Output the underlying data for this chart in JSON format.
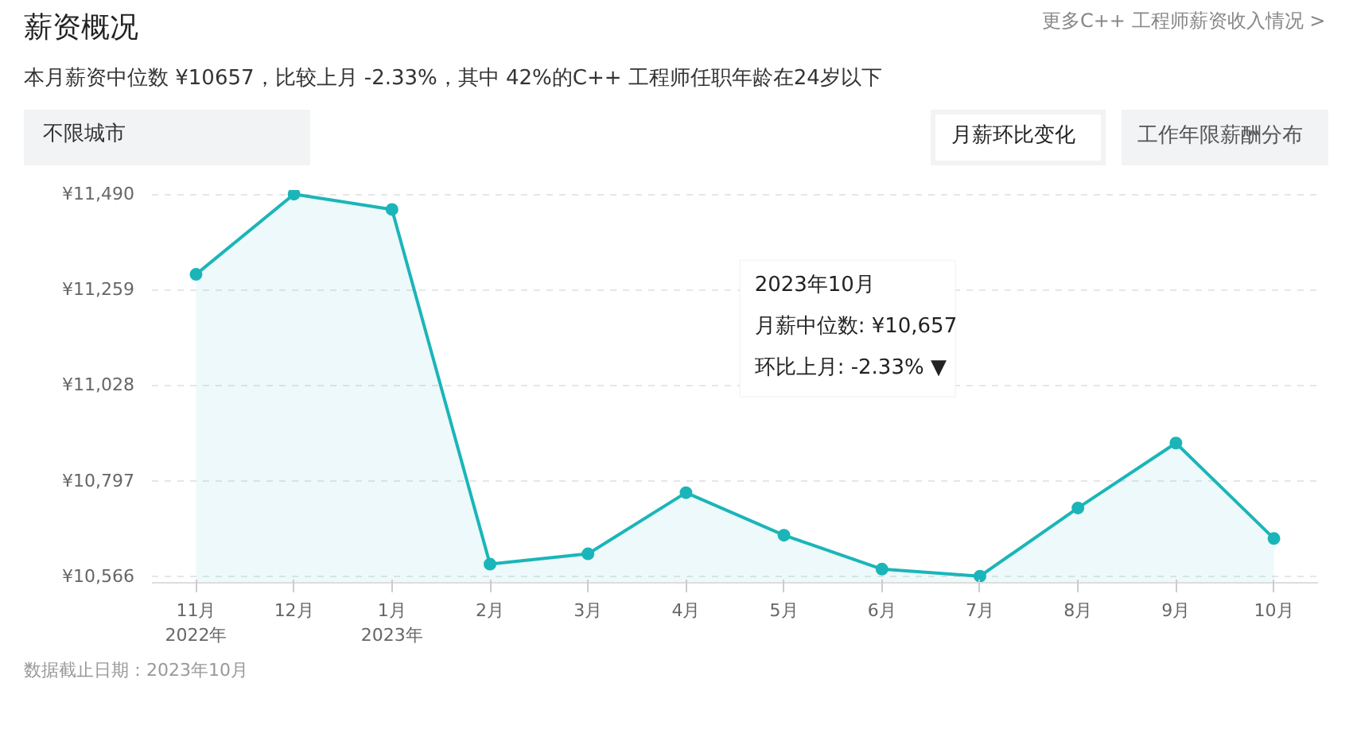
{
  "chart_data": {
    "type": "area",
    "title": "薪资概况",
    "subtitle": "本月薪资中位数 ¥10657，比较上月 -2.33%，其中 42%的C++ 工程师任职年龄在24岁以下",
    "categories": [
      "11月\n2022年",
      "12月",
      "1月\n2023年",
      "2月",
      "3月",
      "4月",
      "5月",
      "6月",
      "7月",
      "8月",
      "9月",
      "10月"
    ],
    "series": [
      {
        "color": "#1bb5b9",
        "values": [
          11296,
          11490,
          11453,
          10595,
          10620,
          10768,
          10665,
          10583,
          10566,
          10731,
          10888,
          10657
        ]
      }
    ],
    "ylim": [
      10550,
      11500
    ],
    "yticks": [
      {
        "value": 10566,
        "label": "¥10,566"
      },
      {
        "value": 10797,
        "label": "¥10,797"
      },
      {
        "value": 11028,
        "label": "¥11,028"
      },
      {
        "value": 11259,
        "label": "¥11,259"
      },
      {
        "value": 11490,
        "label": "¥11,490"
      }
    ],
    "grid": "y",
    "marker": "circle",
    "line_style": "solid",
    "annotations": [
      "更多C++ 工程师薪资收入情况 >",
      "不限城市",
      "月薪环比变化",
      "工作年限薪酬分布",
      "2023年10月",
      "月薪中位数:  ¥10,657",
      "环比上月:  -2.33% ▼",
      "数据截止日期：2023年10月"
    ]
  }
}
